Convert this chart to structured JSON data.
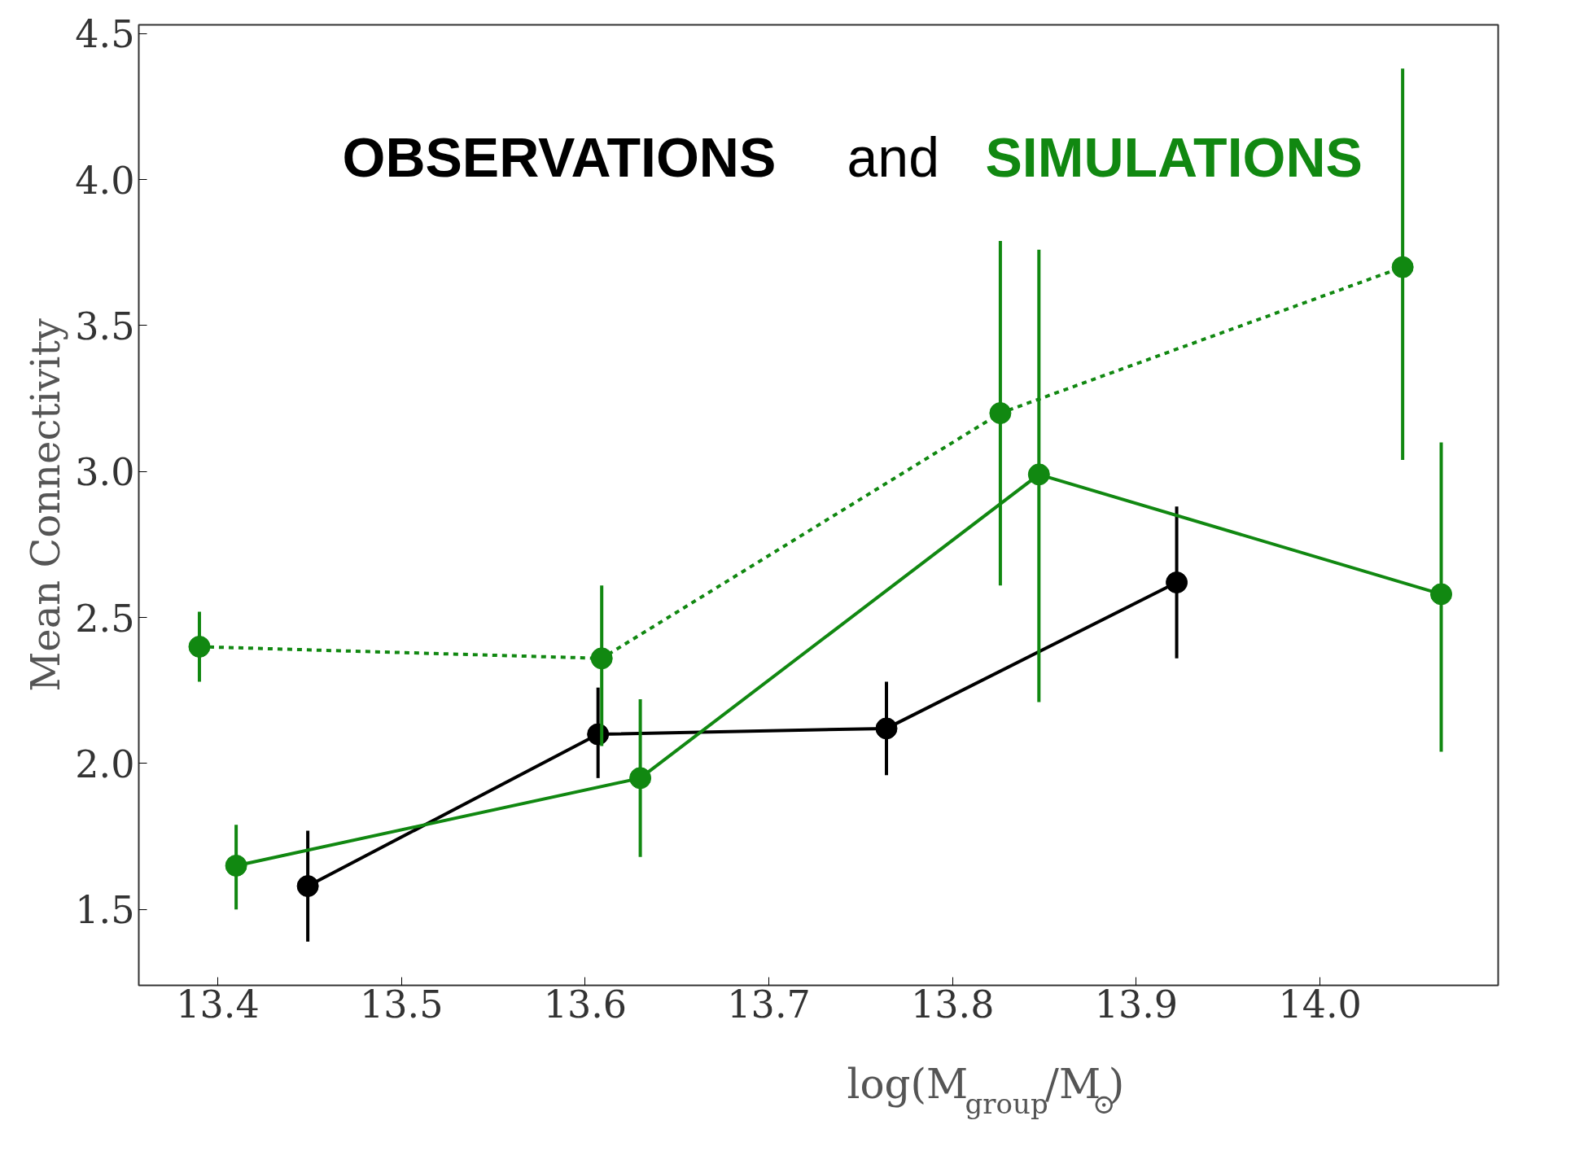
{
  "chart_data": {
    "type": "line",
    "xlabel": "log(M$_{group}$/M$_{⊙}$)",
    "ylabel": "Mean Connectivity",
    "annotations": [
      "OBSERVATIONS",
      "and",
      "SIMULATIONS"
    ],
    "xlim": [
      13.357,
      14.097
    ],
    "xticks": [
      13.4,
      13.5,
      13.6,
      13.7,
      13.8,
      13.9,
      {
        "value": 14.0,
        "label": "14.0"
      }
    ],
    "ylim": [
      1.24,
      4.53
    ],
    "yticks": [
      1.5,
      {
        "value": 2.0,
        "label": "2.0"
      },
      2.5,
      {
        "value": 3.0,
        "label": "3.0"
      },
      3.5,
      {
        "value": 4.0,
        "label": "4.0"
      },
      4.5
    ],
    "marker": "circle",
    "grid": false,
    "series": [
      {
        "color": "#000000",
        "line_style": "solid",
        "x": [
          13.449,
          13.607,
          13.764,
          13.922
        ],
        "values": [
          1.58,
          2.1,
          2.12,
          2.62
        ],
        "errors": [
          [
            1.39,
            1.77
          ],
          [
            1.95,
            2.26
          ],
          [
            1.96,
            2.28
          ],
          [
            2.36,
            2.88
          ]
        ]
      },
      {
        "color": "#118811",
        "line_style": "solid",
        "x": [
          13.41,
          13.63,
          13.847,
          14.066
        ],
        "values": [
          1.65,
          1.95,
          2.99,
          2.58
        ],
        "errors": [
          [
            1.5,
            1.79
          ],
          [
            1.68,
            2.22
          ],
          [
            2.21,
            3.76
          ],
          [
            2.04,
            3.1
          ]
        ]
      },
      {
        "color": "#118811",
        "line_style": "dashed",
        "x": [
          13.39,
          13.609,
          13.826,
          14.045
        ],
        "values": [
          2.4,
          2.36,
          3.2,
          3.7
        ],
        "errors": [
          [
            2.28,
            2.52
          ],
          [
            2.06,
            2.61
          ],
          [
            2.61,
            3.79
          ],
          [
            3.04,
            4.38
          ]
        ]
      }
    ]
  }
}
